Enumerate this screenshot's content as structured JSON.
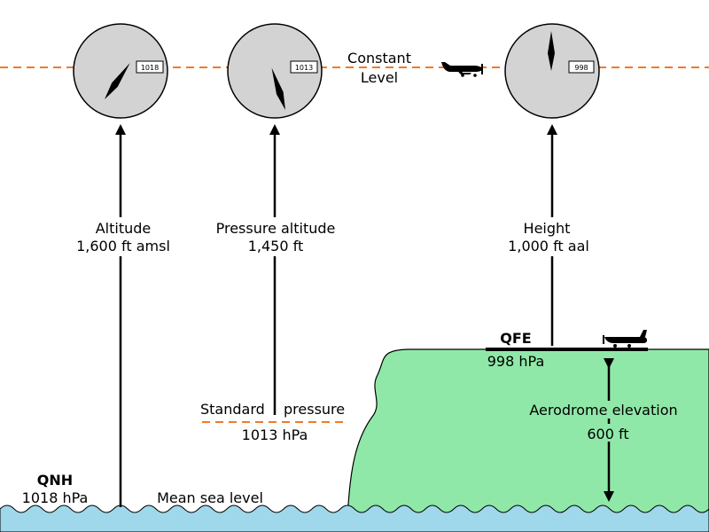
{
  "altimeters": [
    {
      "id": "qnh",
      "setting": "1018"
    },
    {
      "id": "std",
      "setting": "1013"
    },
    {
      "id": "qfe",
      "setting": "998"
    }
  ],
  "constant_level": {
    "line1": "Constant",
    "line2": "Level"
  },
  "altitude": {
    "title": "Altitude",
    "value": "1,600 ft amsl"
  },
  "pressure_altitude": {
    "title": "Pressure altitude",
    "value": "1,450 ft"
  },
  "height": {
    "title": "Height",
    "value": "1,000 ft aal"
  },
  "standard_pressure": {
    "left": "Standard",
    "right": "pressure",
    "value": "1013 hPa"
  },
  "qnh": {
    "label": "QNH",
    "value": "1018 hPa"
  },
  "msl": {
    "label": "Mean sea level"
  },
  "qfe": {
    "label": "QFE",
    "value": "998 hPa"
  },
  "aerodrome_elevation": {
    "label": "Aerodrome elevation",
    "value": "600 ft"
  },
  "colors": {
    "dashed_level": "#f07a2a",
    "sea": "#9fd8ea",
    "land": "#90e8a8",
    "dial": "#d3d3d3"
  }
}
